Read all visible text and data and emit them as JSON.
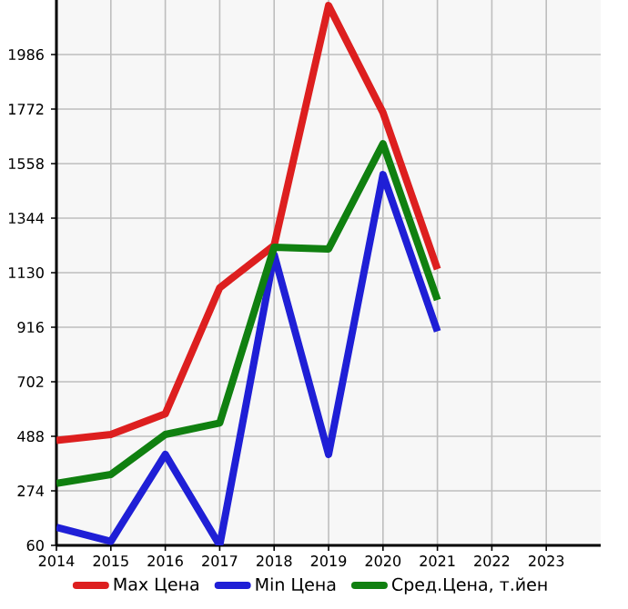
{
  "chart_data": {
    "type": "line",
    "x": [
      2014,
      2015,
      2016,
      2017,
      2018,
      2019,
      2020,
      2021
    ],
    "series": [
      {
        "name": "Max Цена",
        "color": "#dd1f1f",
        "values": [
          472,
          495,
          576,
          1071,
          1237,
          2178,
          1758,
          1144
        ]
      },
      {
        "name": "Min Цена",
        "color": "#1f1fd6",
        "values": [
          131,
          76,
          417,
          60,
          1201,
          417,
          1515,
          900
        ]
      },
      {
        "name": "Сред.Цена, т.йен",
        "color": "#108010",
        "values": [
          303,
          338,
          495,
          540,
          1230,
          1223,
          1636,
          1023
        ]
      }
    ],
    "xlim": [
      2014,
      2024
    ],
    "xticks": [
      2014,
      2015,
      2016,
      2017,
      2018,
      2019,
      2020,
      2021,
      2022,
      2023
    ],
    "ylim": [
      60,
      2200
    ],
    "yticks": [
      60,
      274,
      488,
      702,
      916,
      1130,
      1344,
      1558,
      1772,
      1986
    ],
    "grid": true,
    "legend": "bottom"
  }
}
